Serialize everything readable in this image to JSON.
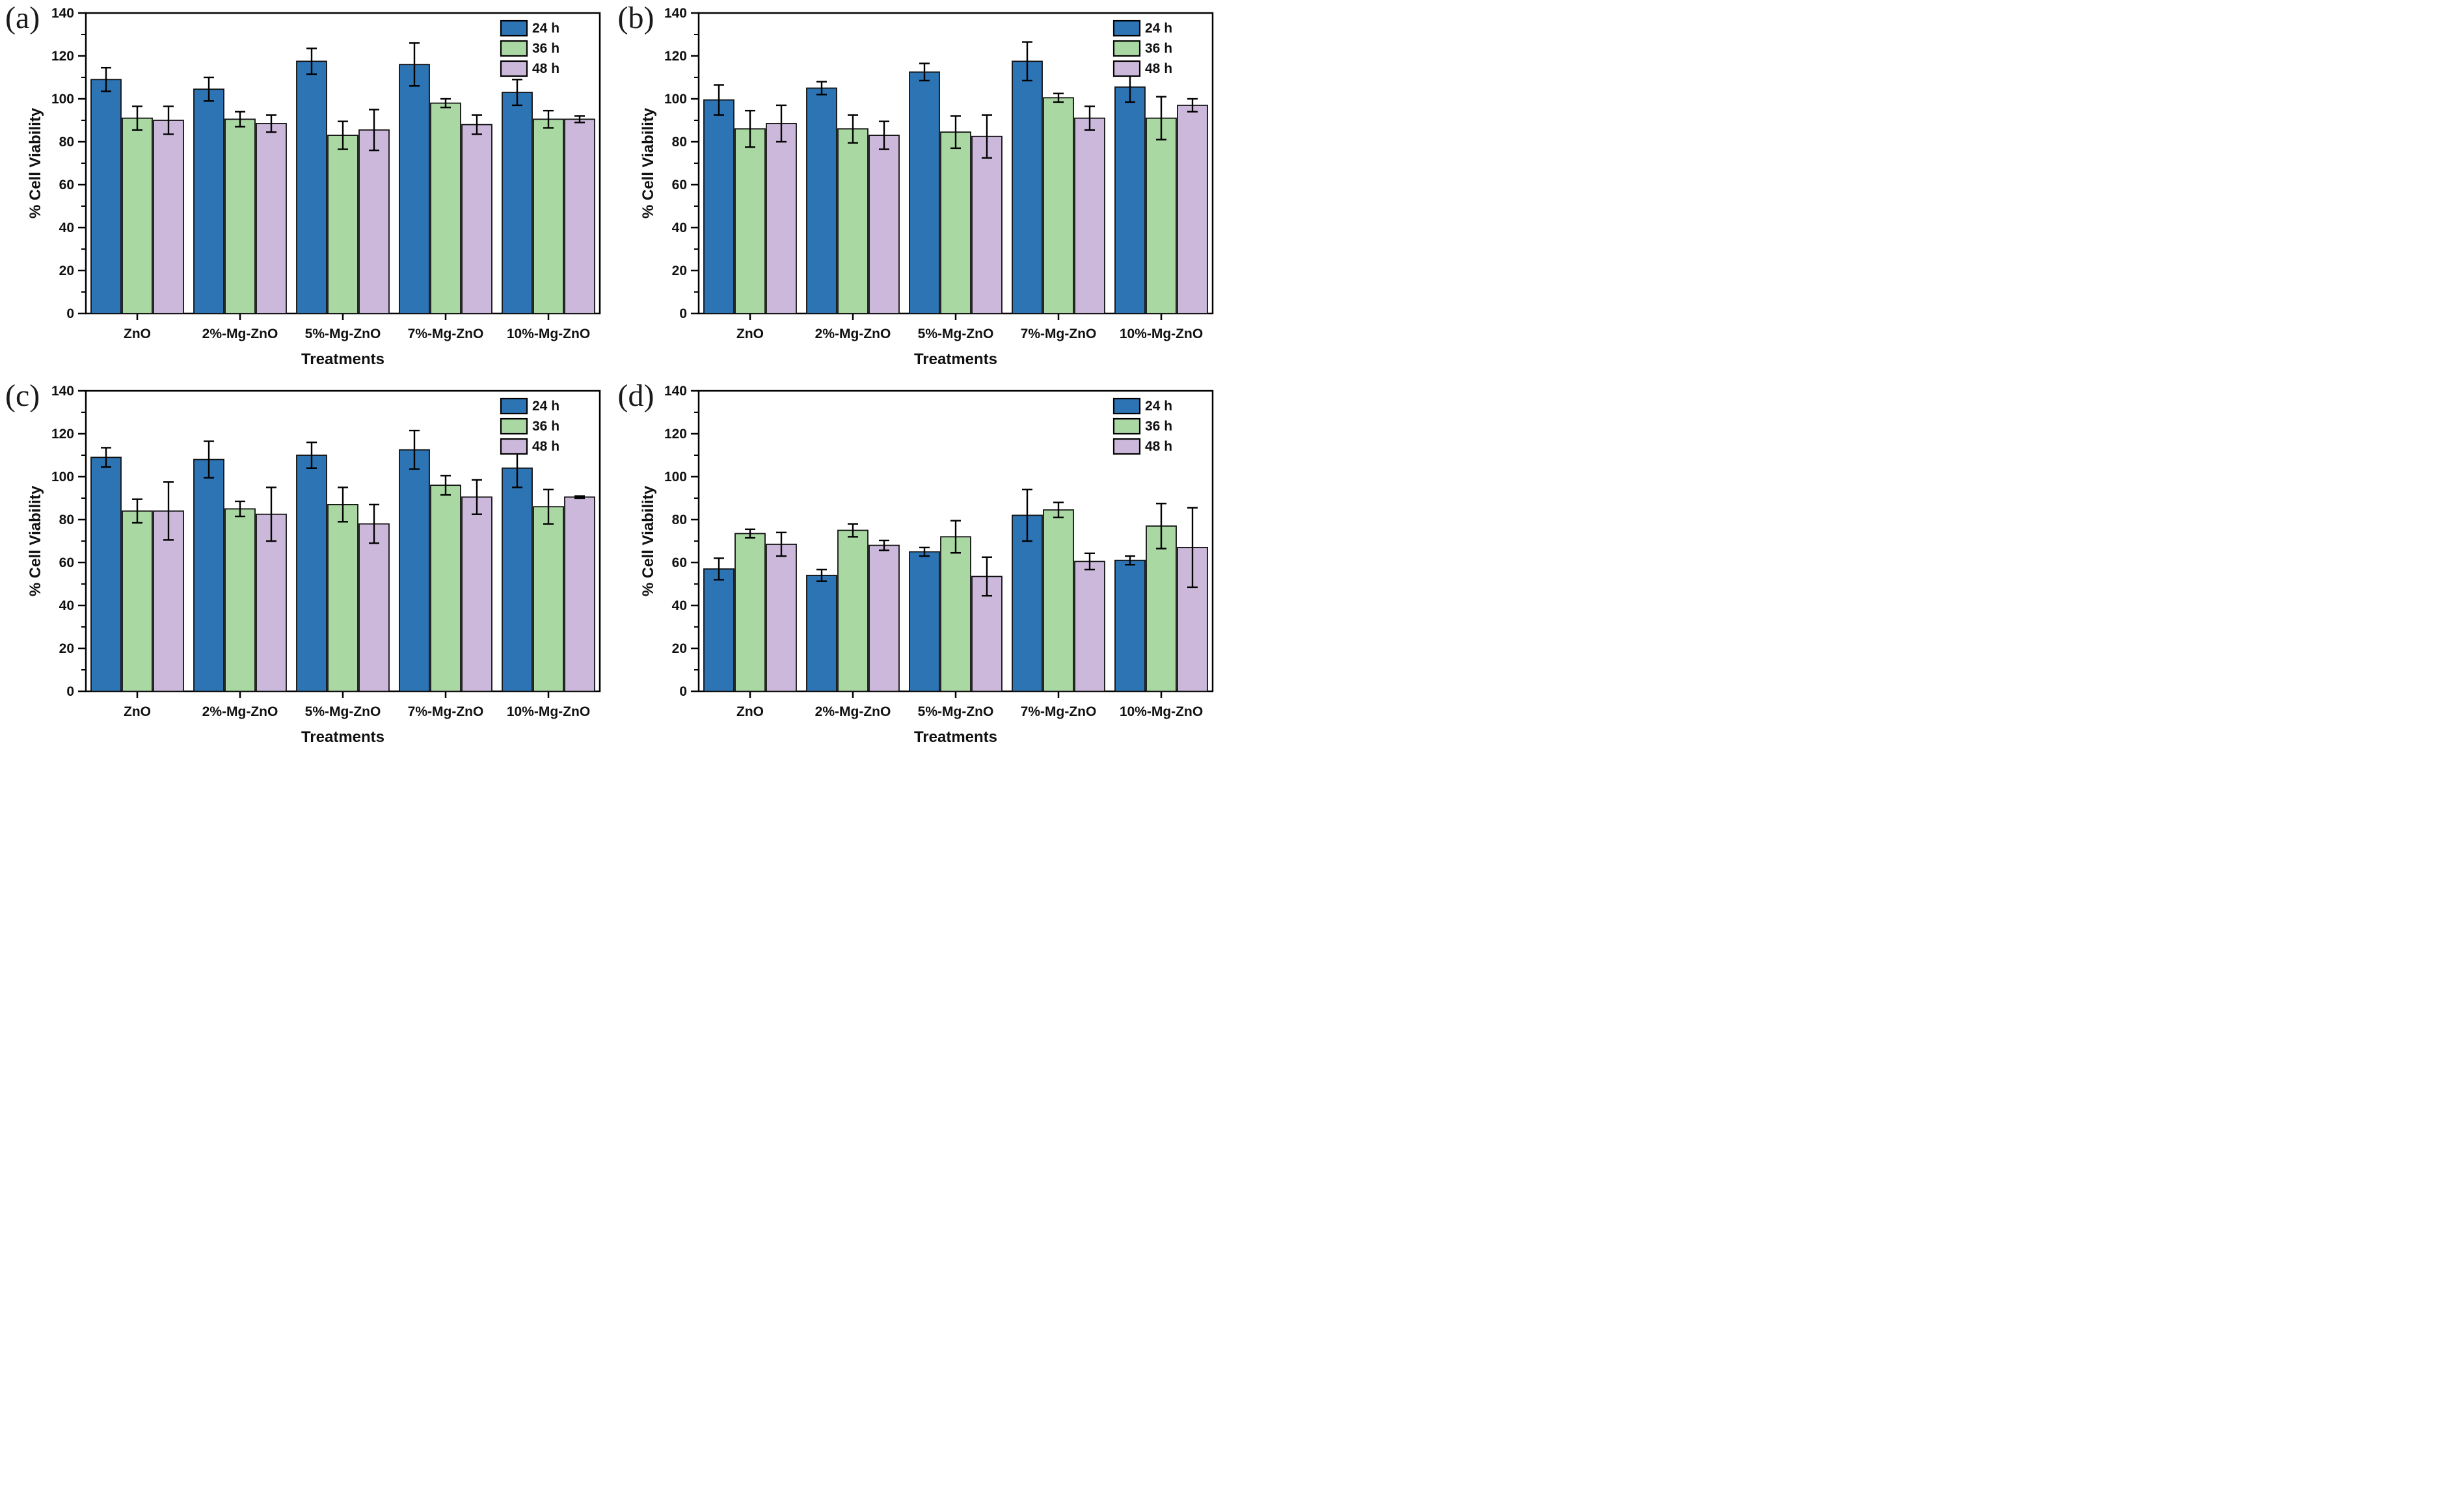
{
  "figure_title": "",
  "panel_letters": [
    "(a)",
    "(b)",
    "(c)",
    "(d)"
  ],
  "colors": {
    "series_24h": "#2d74b5",
    "series_36h": "#a9d8a2",
    "series_48h": "#ccb8db",
    "bar_edge": "#111111",
    "axis": "#000000",
    "background": "#ffffff"
  },
  "chart_data": [
    {
      "type": "bar",
      "panel_label": "(a)",
      "title": "",
      "xlabel": "Treatments",
      "ylabel": "% Cell Viability",
      "ylim": [
        0,
        140
      ],
      "yticks": [
        0,
        20,
        40,
        60,
        80,
        100,
        120,
        140
      ],
      "minor_tick_step": 10,
      "grid": false,
      "legend_position": "top-right",
      "categories": [
        "ZnO",
        "2%-Mg-ZnO",
        "5%-Mg-ZnO",
        "7%-Mg-ZnO",
        "10%-Mg-ZnO"
      ],
      "series": [
        {
          "name": "24 h",
          "color": "#2d74b5",
          "values": [
            109,
            104.5,
            117.5,
            116,
            103
          ],
          "errors": [
            5.5,
            5.5,
            6,
            10,
            6
          ]
        },
        {
          "name": "36 h",
          "color": "#a9d8a2",
          "values": [
            91,
            90.5,
            83,
            98,
            90.5
          ],
          "errors": [
            5.5,
            3.5,
            6.5,
            2,
            4
          ]
        },
        {
          "name": "48 h",
          "color": "#ccb8db",
          "values": [
            90,
            88.5,
            85.5,
            88,
            90.5
          ],
          "errors": [
            6.5,
            4,
            9.5,
            4.5,
            1.5
          ]
        }
      ]
    },
    {
      "type": "bar",
      "panel_label": "(b)",
      "title": "",
      "xlabel": "Treatments",
      "ylabel": "% Cell Viability",
      "ylim": [
        0,
        140
      ],
      "yticks": [
        0,
        20,
        40,
        60,
        80,
        100,
        120,
        140
      ],
      "minor_tick_step": 10,
      "grid": false,
      "legend_position": "top-right",
      "categories": [
        "ZnO",
        "2%-Mg-ZnO",
        "5%-Mg-ZnO",
        "7%-Mg-ZnO",
        "10%-Mg-ZnO"
      ],
      "series": [
        {
          "name": "24 h",
          "color": "#2d74b5",
          "values": [
            99.5,
            105,
            112.5,
            117.5,
            105.5
          ],
          "errors": [
            7,
            3,
            4,
            9,
            7
          ]
        },
        {
          "name": "36 h",
          "color": "#a9d8a2",
          "values": [
            86,
            86,
            84.5,
            100.5,
            91
          ],
          "errors": [
            8.5,
            6.5,
            7.5,
            2,
            10
          ]
        },
        {
          "name": "48 h",
          "color": "#ccb8db",
          "values": [
            88.5,
            83,
            82.5,
            91,
            97
          ],
          "errors": [
            8.5,
            6.5,
            10,
            5.5,
            3
          ]
        }
      ]
    },
    {
      "type": "bar",
      "panel_label": "(c)",
      "title": "",
      "xlabel": "Treatments",
      "ylabel": "% Cell Viability",
      "ylim": [
        0,
        140
      ],
      "yticks": [
        0,
        20,
        40,
        60,
        80,
        100,
        120,
        140
      ],
      "minor_tick_step": 10,
      "grid": false,
      "legend_position": "top-right",
      "categories": [
        "ZnO",
        "2%-Mg-ZnO",
        "5%-Mg-ZnO",
        "7%-Mg-ZnO",
        "10%-Mg-ZnO"
      ],
      "series": [
        {
          "name": "24 h",
          "color": "#2d74b5",
          "values": [
            109,
            108,
            110,
            112.5,
            104
          ],
          "errors": [
            4.5,
            8.5,
            6,
            9,
            9
          ]
        },
        {
          "name": "36 h",
          "color": "#a9d8a2",
          "values": [
            84,
            85,
            87,
            96,
            86
          ],
          "errors": [
            5.5,
            3.5,
            8,
            4.5,
            8
          ]
        },
        {
          "name": "48 h",
          "color": "#ccb8db",
          "values": [
            84,
            82.5,
            78,
            90.5,
            90.5
          ],
          "errors": [
            13.5,
            12.5,
            9,
            8,
            0.5
          ]
        }
      ]
    },
    {
      "type": "bar",
      "panel_label": "(d)",
      "title": "",
      "xlabel": "Treatments",
      "ylabel": "% Cell Viability",
      "ylim": [
        0,
        140
      ],
      "yticks": [
        0,
        20,
        40,
        60,
        80,
        100,
        120,
        140
      ],
      "minor_tick_step": 10,
      "grid": false,
      "legend_position": "top-right",
      "categories": [
        "ZnO",
        "2%-Mg-ZnO",
        "5%-Mg-ZnO",
        "7%-Mg-ZnO",
        "10%-Mg-ZnO"
      ],
      "series": [
        {
          "name": "24 h",
          "color": "#2d74b5",
          "values": [
            57,
            54,
            65,
            82,
            61
          ],
          "errors": [
            5,
            2.7,
            2,
            12,
            2
          ]
        },
        {
          "name": "36 h",
          "color": "#a9d8a2",
          "values": [
            73.5,
            75,
            72,
            84.5,
            77
          ],
          "errors": [
            2,
            3,
            7.5,
            3.5,
            10.5
          ]
        },
        {
          "name": "48 h",
          "color": "#ccb8db",
          "values": [
            68.5,
            68,
            53.5,
            60.5,
            67
          ],
          "errors": [
            5.5,
            2.3,
            9,
            3.8,
            18.5
          ]
        }
      ]
    }
  ]
}
